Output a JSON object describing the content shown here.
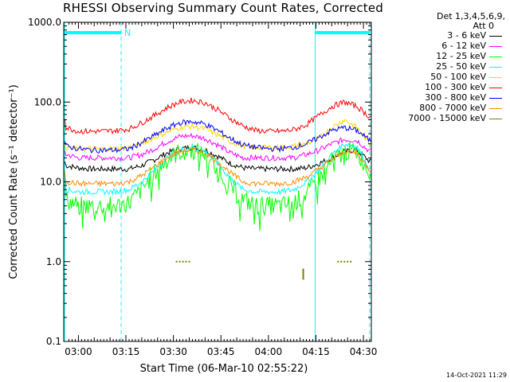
{
  "chart_data": {
    "type": "line",
    "title": "RHESSI Observing Summary Count Rates, Corrected",
    "detectors": "Det 1,3,4,5,6,9,",
    "attenuator": "Att 0",
    "ylabel": "Corrected Count Rate (s⁻¹ detector⁻¹)",
    "xlabel": "Start Time (06-Mar-10 02:55:22)",
    "yscale": "log",
    "ylim": [
      0.1,
      1000
    ],
    "xlim": [
      "02:55:22",
      "04:32:30"
    ],
    "y_ticks": [
      "0.1",
      "1.0",
      "10.0",
      "100.0",
      "1000.0"
    ],
    "x_ticks": [
      "03:00",
      "03:15",
      "03:30",
      "03:45",
      "04:00",
      "04:15",
      "04:30"
    ],
    "x_tick_minutes": [
      0,
      15,
      30,
      45,
      60,
      75,
      90
    ],
    "x_start_minute_past_0300": -4.63,
    "x_end_minute_past_0300": 92.5,
    "night_markers": [
      {
        "label": "N",
        "x_start": "02:55:22",
        "x_end": "03:13:30"
      },
      {
        "label": "",
        "x_start": "04:14:45",
        "x_end": "04:32:00"
      }
    ],
    "dashed_markers": [
      "03:13:30",
      "04:32:00"
    ],
    "solid_markers": [
      "02:55:22",
      "04:14:45"
    ],
    "x_minutes": [
      -4,
      0,
      4,
      8,
      12,
      16,
      20,
      24,
      28,
      32,
      36,
      40,
      44,
      48,
      52,
      56,
      60,
      64,
      68,
      72,
      76,
      80,
      84,
      88,
      92
    ],
    "series": [
      {
        "name": "3 - 6 keV",
        "color": "#000000",
        "values": [
          16,
          15,
          14.5,
          14.5,
          14.5,
          14.5,
          16,
          19,
          23,
          26,
          27,
          25,
          21,
          17,
          15,
          14.5,
          14.5,
          14.5,
          14.5,
          15,
          17,
          20,
          24,
          25,
          18
        ]
      },
      {
        "name": "6 - 12 keV",
        "color": "#ff00ff",
        "values": [
          22,
          20,
          20,
          20,
          20,
          20,
          22,
          26,
          32,
          37,
          38,
          35,
          29,
          23,
          20,
          20,
          20,
          20,
          20,
          22,
          25,
          30,
          34,
          33,
          24
        ]
      },
      {
        "name": "12 - 25 keV",
        "color": "#00ff00",
        "values": [
          6,
          5,
          5,
          5,
          5,
          5.5,
          8,
          13,
          19,
          24,
          25,
          22,
          15,
          9,
          6,
          5,
          5,
          5,
          5.5,
          7,
          11,
          18,
          24,
          24,
          13
        ]
      },
      {
        "name": "25 - 50 keV",
        "color": "#00ffff",
        "values": [
          8,
          7.5,
          7.5,
          7.5,
          7.5,
          8,
          10,
          14,
          20,
          25,
          27,
          24,
          17,
          11,
          8,
          7.5,
          7.5,
          7.5,
          8,
          10,
          14,
          22,
          30,
          28,
          14
        ]
      },
      {
        "name": "50 - 100 keV",
        "color": "#ffd700",
        "values": [
          27,
          26,
          26,
          26,
          26,
          27,
          30,
          36,
          42,
          48,
          50,
          46,
          39,
          32,
          28,
          27,
          27,
          27,
          28,
          30,
          35,
          48,
          60,
          48,
          30
        ]
      },
      {
        "name": "100 - 300 keV",
        "color": "#ff0000",
        "values": [
          48,
          43,
          43,
          43,
          44,
          46,
          55,
          68,
          85,
          100,
          105,
          98,
          80,
          62,
          50,
          44,
          43,
          43,
          45,
          52,
          68,
          88,
          100,
          88,
          65
        ]
      },
      {
        "name": "300 - 800 keV",
        "color": "#0000ff",
        "values": [
          28,
          26,
          25,
          25,
          25,
          26,
          31,
          38,
          47,
          55,
          57,
          53,
          44,
          35,
          29,
          27,
          26,
          26,
          27,
          30,
          36,
          44,
          48,
          44,
          33
        ]
      },
      {
        "name": "800 - 7000 keV",
        "color": "#ff8c00",
        "values": [
          10,
          9.5,
          9.5,
          9.5,
          9.5,
          10,
          12,
          15.5,
          20,
          24,
          25,
          23,
          18,
          13,
          10,
          9.5,
          9.5,
          9.5,
          10,
          11.5,
          14.5,
          19,
          24,
          23,
          14
        ]
      },
      {
        "name": "7000 - 15000 keV",
        "color": "#808000",
        "values": [
          null,
          null,
          null,
          null,
          null,
          null,
          null,
          null,
          null,
          null,
          null,
          null,
          null,
          null,
          null,
          null,
          null,
          null,
          null,
          null,
          null,
          null,
          null,
          null,
          null
        ],
        "sparse_points": [
          [
            31,
            1.0
          ],
          [
            32,
            1.0
          ],
          [
            33,
            1.0
          ],
          [
            34,
            1.0
          ],
          [
            35,
            1.0
          ],
          [
            71,
            0.8
          ],
          [
            82,
            1.0
          ],
          [
            83,
            1.0
          ],
          [
            84,
            1.0
          ],
          [
            85,
            1.0
          ],
          [
            86,
            1.0
          ]
        ]
      }
    ]
  },
  "footer": {
    "timestamp": "14-Oct-2021 11:29"
  }
}
